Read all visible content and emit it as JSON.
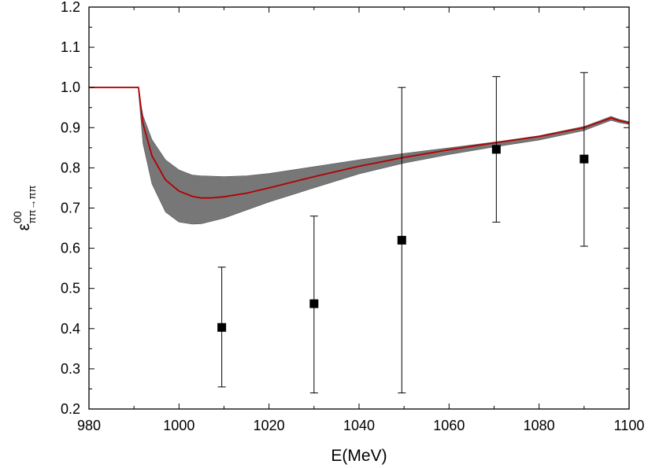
{
  "chart_data": {
    "type": "line",
    "xlabel": "E(MeV)",
    "ylabel": {
      "base": "ε",
      "sup": "00",
      "sub": "ππ→ππ"
    },
    "xlim": [
      980,
      1100
    ],
    "ylim": [
      0.2,
      1.2
    ],
    "x_ticks": [
      980,
      1000,
      1020,
      1040,
      1060,
      1080,
      1100
    ],
    "y_ticks": [
      0.2,
      0.3,
      0.4,
      0.5,
      0.6,
      0.7,
      0.8,
      0.9,
      1.0,
      1.1,
      1.2
    ],
    "x_tick_labels": [
      "980",
      "1000",
      "1020",
      "1040",
      "1060",
      "1080",
      "1100"
    ],
    "y_tick_labels": [
      "0.2",
      "0.3",
      "0.4",
      "0.5",
      "0.6",
      "0.7",
      "0.8",
      "0.9",
      "1.0",
      "1.1",
      "1.2"
    ],
    "grid": false,
    "series": [
      {
        "kind": "band",
        "color": "#777777",
        "x": [
          991,
          992,
          994,
          997,
          1000,
          1003,
          1005,
          1010,
          1015,
          1020,
          1030,
          1040,
          1050,
          1060,
          1070,
          1080,
          1090,
          1096,
          1098,
          1100
        ],
        "upper": [
          0.99,
          0.93,
          0.87,
          0.82,
          0.795,
          0.782,
          0.78,
          0.778,
          0.78,
          0.786,
          0.803,
          0.82,
          0.836,
          0.85,
          0.864,
          0.88,
          0.903,
          0.928,
          0.92,
          0.915
        ],
        "lower": [
          0.99,
          0.86,
          0.76,
          0.69,
          0.665,
          0.66,
          0.661,
          0.675,
          0.695,
          0.715,
          0.75,
          0.785,
          0.812,
          0.833,
          0.852,
          0.869,
          0.893,
          0.918,
          0.912,
          0.908
        ]
      },
      {
        "kind": "line",
        "color": "#b30000",
        "x": [
          980,
          991,
          992,
          994,
          997,
          1000,
          1003,
          1005,
          1007,
          1010,
          1015,
          1020,
          1030,
          1040,
          1050,
          1060,
          1070,
          1080,
          1090,
          1096,
          1098,
          1100
        ],
        "y": [
          1.0,
          1.0,
          0.91,
          0.83,
          0.77,
          0.742,
          0.729,
          0.725,
          0.725,
          0.728,
          0.737,
          0.75,
          0.778,
          0.804,
          0.826,
          0.845,
          0.862,
          0.878,
          0.9,
          0.924,
          0.917,
          0.912
        ]
      },
      {
        "kind": "points",
        "color": "#000000",
        "x": [
          1009.5,
          1030,
          1049.5,
          1070.5,
          1090
        ],
        "y": [
          0.403,
          0.462,
          0.62,
          0.846,
          0.822
        ],
        "yerr_low": [
          0.255,
          0.24,
          0.24,
          0.665,
          0.605
        ],
        "yerr_high": [
          0.553,
          0.68,
          1.0,
          1.027,
          1.037
        ]
      }
    ]
  }
}
